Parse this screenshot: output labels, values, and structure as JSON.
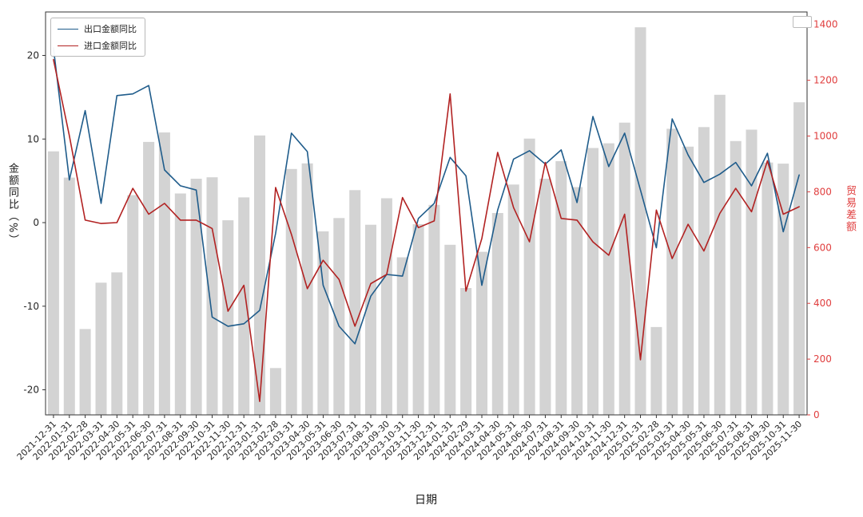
{
  "colors": {
    "export_line": "#1f5c8b",
    "import_line": "#b22222",
    "bars": "#d3d3d3",
    "right_axis": "#e03e3e",
    "text": "#262626"
  },
  "chart_data": {
    "type": "combo",
    "title": "",
    "xlabel": "日期",
    "ylabel_left": "金额同比（%）",
    "ylabel_right": "贸易差额",
    "legend_position": "upper-left",
    "grid": false,
    "x_tick_rotation": 45,
    "ylim_left": [
      -23,
      25.2
    ],
    "yticks_left": [
      20,
      10,
      0,
      -10,
      -20
    ],
    "ylim_right": [
      0,
      1445
    ],
    "yticks_right": [
      0,
      200,
      400,
      600,
      800,
      1000,
      1200,
      1400
    ],
    "x": [
      "2021-12-31",
      "2022-01-31",
      "2022-02-28",
      "2022-03-31",
      "2022-04-30",
      "2022-05-31",
      "2022-06-30",
      "2022-07-31",
      "2022-08-31",
      "2022-09-30",
      "2022-10-31",
      "2022-11-30",
      "2022-12-31",
      "2023-01-31",
      "2023-02-28",
      "2023-03-31",
      "2023-04-30",
      "2023-05-31",
      "2023-06-30",
      "2023-07-31",
      "2023-08-31",
      "2023-09-30",
      "2023-10-31",
      "2023-11-30",
      "2023-12-31",
      "2024-01-31",
      "2024-02-29",
      "2024-03-31",
      "2024-04-30",
      "2024-05-31",
      "2024-06-30",
      "2024-07-31",
      "2024-08-31",
      "2024-09-30",
      "2024-10-31",
      "2024-11-30",
      "2024-12-31",
      "2025-01-31",
      "2025-02-28",
      "2025-03-31",
      "2025-04-30",
      "2025-05-31",
      "2025-06-30",
      "2025-07-31",
      "2025-08-31",
      "2025-09-30",
      "2025-10-31",
      "2025-11-30"
    ],
    "series": [
      {
        "name": "出口金额同比",
        "type": "line",
        "axis": "left",
        "color": "#1f5c8b",
        "values": [
          20.9,
          5.1,
          13.4,
          2.3,
          15.2,
          15.4,
          16.4,
          6.3,
          4.4,
          3.9,
          -11.3,
          -12.4,
          -12.1,
          -10.5,
          -1.3,
          10.7,
          8.5,
          -7.5,
          -12.4,
          -14.5,
          -8.8,
          -6.2,
          -6.4,
          0.5,
          2.3,
          7.8,
          5.6,
          -7.5,
          1.5,
          7.6,
          8.6,
          7.0,
          8.7,
          2.4,
          12.7,
          6.7,
          10.7,
          3.9,
          -3.0,
          12.4,
          8.1,
          4.8,
          5.8,
          7.2,
          4.4,
          8.3,
          -1.1,
          5.7
        ]
      },
      {
        "name": "进口金额同比",
        "type": "line",
        "axis": "left",
        "color": "#b22222",
        "values": [
          19.5,
          10.4,
          0.3,
          -0.1,
          0.0,
          4.1,
          1.0,
          2.3,
          0.3,
          0.3,
          -0.7,
          -10.6,
          -7.5,
          -21.4,
          4.2,
          -1.4,
          -7.9,
          -4.5,
          -6.8,
          -12.4,
          -7.3,
          -6.2,
          3.0,
          -0.6,
          0.2,
          15.4,
          -8.2,
          -1.9,
          8.4,
          1.8,
          -2.3,
          7.2,
          0.5,
          0.3,
          -2.3,
          -3.9,
          1.0,
          -16.4,
          1.5,
          -4.3,
          -0.2,
          -3.4,
          1.1,
          4.1,
          1.3,
          7.4,
          1.0,
          1.9
        ]
      },
      {
        "name": "贸易差额",
        "type": "bar",
        "axis": "right",
        "color": "#d3d3d3",
        "values": [
          945,
          851,
          308,
          474,
          511,
          788,
          979,
          1013,
          794,
          847,
          852,
          698,
          780,
          1002,
          168,
          882,
          902,
          658,
          706,
          806,
          682,
          777,
          565,
          684,
          753,
          610,
          455,
          585,
          724,
          826,
          991,
          847,
          910,
          817,
          957,
          974,
          1048,
          1390,
          315,
          1026,
          962,
          1032,
          1148,
          982,
          1023,
          905,
          901,
          1121
        ]
      }
    ]
  }
}
